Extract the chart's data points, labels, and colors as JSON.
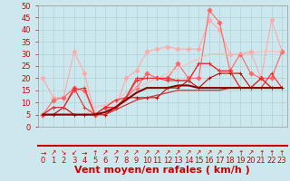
{
  "xlabel": "Vent moyen/en rafales ( km/h )",
  "xlim": [
    -0.5,
    23.5
  ],
  "ylim": [
    0,
    50
  ],
  "xticks": [
    0,
    1,
    2,
    3,
    4,
    5,
    6,
    7,
    8,
    9,
    10,
    11,
    12,
    13,
    14,
    15,
    16,
    17,
    18,
    19,
    20,
    21,
    22,
    23
  ],
  "yticks": [
    0,
    5,
    10,
    15,
    20,
    25,
    30,
    35,
    40,
    45,
    50
  ],
  "background_color": "#cce8ee",
  "grid_color": "#aacccc",
  "lines": [
    {
      "x": [
        0,
        1,
        2,
        3,
        4,
        5,
        6,
        7,
        8,
        9,
        10,
        11,
        12,
        13,
        14,
        15,
        16,
        17,
        18,
        19,
        20,
        21,
        22,
        23
      ],
      "y": [
        5,
        5,
        8,
        5,
        5,
        5,
        5,
        8,
        12,
        12,
        12,
        12,
        16,
        16,
        19,
        16,
        20,
        22,
        22,
        22,
        16,
        20,
        16,
        16
      ],
      "color": "#cc0000",
      "marker": "+",
      "markersize": 3,
      "linewidth": 0.8,
      "zorder": 3
    },
    {
      "x": [
        0,
        1,
        2,
        3,
        4,
        5,
        6,
        7,
        8,
        9,
        10,
        11,
        12,
        13,
        14,
        15,
        16,
        17,
        18,
        19,
        20,
        21,
        22,
        23
      ],
      "y": [
        5,
        8,
        8,
        15,
        16,
        5,
        8,
        11,
        12,
        19,
        20,
        20,
        20,
        19,
        19,
        26,
        26,
        23,
        23,
        16,
        16,
        16,
        22,
        16
      ],
      "color": "#ff2222",
      "marker": "+",
      "markersize": 3,
      "linewidth": 0.8,
      "zorder": 3
    },
    {
      "x": [
        0,
        1,
        2,
        3,
        4,
        5,
        6,
        7,
        8,
        9,
        10,
        11,
        12,
        13,
        14,
        15,
        16,
        17,
        18,
        19,
        20,
        21,
        22,
        23
      ],
      "y": [
        5,
        5,
        5,
        5,
        5,
        5,
        6,
        8,
        11,
        14,
        16,
        16,
        16,
        17,
        17,
        16,
        16,
        16,
        16,
        16,
        16,
        16,
        16,
        16
      ],
      "color": "#880000",
      "marker": null,
      "markersize": 0,
      "linewidth": 1.5,
      "zorder": 4
    },
    {
      "x": [
        0,
        1,
        2,
        3,
        4,
        5,
        6,
        7,
        8,
        9,
        10,
        11,
        12,
        13,
        14,
        15,
        16,
        17,
        18,
        19,
        20,
        21,
        22,
        23
      ],
      "y": [
        5,
        5,
        5,
        5,
        5,
        5,
        5,
        7,
        9,
        11,
        12,
        13,
        14,
        15,
        15,
        15,
        15,
        15,
        16,
        16,
        16,
        16,
        16,
        16
      ],
      "color": "#cc3333",
      "marker": null,
      "markersize": 0,
      "linewidth": 0.9,
      "zorder": 3
    },
    {
      "x": [
        0,
        1,
        2,
        3,
        4,
        5,
        6,
        7,
        8,
        9,
        10,
        11,
        12,
        13,
        14,
        15,
        16,
        17,
        18,
        19,
        20,
        21,
        22,
        23
      ],
      "y": [
        20,
        12,
        12,
        31,
        22,
        5,
        5,
        8,
        20,
        23,
        31,
        32,
        33,
        32,
        32,
        32,
        44,
        40,
        30,
        30,
        31,
        20,
        44,
        31
      ],
      "color": "#ffaaaa",
      "marker": "D",
      "markersize": 2.5,
      "linewidth": 0.8,
      "zorder": 2
    },
    {
      "x": [
        0,
        1,
        2,
        3,
        4,
        5,
        6,
        7,
        8,
        9,
        10,
        11,
        12,
        13,
        14,
        15,
        16,
        17,
        18,
        19,
        20,
        21,
        22,
        23
      ],
      "y": [
        5,
        11,
        12,
        16,
        15,
        5,
        8,
        8,
        12,
        16,
        22,
        20,
        20,
        26,
        20,
        20,
        48,
        43,
        23,
        30,
        22,
        20,
        20,
        31
      ],
      "color": "#ff6666",
      "marker": "D",
      "markersize": 2.5,
      "linewidth": 0.8,
      "zorder": 2
    },
    {
      "x": [
        0,
        1,
        2,
        3,
        4,
        5,
        6,
        7,
        8,
        9,
        10,
        11,
        12,
        13,
        14,
        15,
        16,
        17,
        18,
        19,
        20,
        21,
        22,
        23
      ],
      "y": [
        5,
        5,
        5,
        5,
        5,
        8,
        9,
        11,
        14,
        16,
        18,
        20,
        22,
        24,
        26,
        28,
        30,
        30,
        30,
        30,
        30,
        31,
        31,
        31
      ],
      "color": "#ffbbbb",
      "marker": null,
      "markersize": 0,
      "linewidth": 0.9,
      "zorder": 2
    },
    {
      "x": [
        0,
        1,
        2,
        3,
        4,
        5,
        6,
        7,
        8,
        9,
        10,
        11,
        12,
        13,
        14,
        15,
        16,
        17,
        18,
        19,
        20,
        21,
        22,
        23
      ],
      "y": [
        5,
        8,
        8,
        16,
        8,
        5,
        8,
        8,
        12,
        20,
        20,
        20,
        19,
        19,
        19,
        26,
        26,
        23,
        23,
        16,
        16,
        20,
        16,
        16
      ],
      "color": "#dd3333",
      "marker": "+",
      "markersize": 3,
      "linewidth": 0.8,
      "zorder": 3
    }
  ],
  "arrows": [
    "→",
    "↗",
    "↘",
    "↙",
    "→",
    "↑",
    "↗",
    "↗",
    "↗",
    "↗",
    "↗",
    "↗",
    "↗",
    "↗",
    "↗",
    "↗",
    "↗",
    "↗",
    "↗",
    "↑",
    "↗",
    "↑",
    "↑",
    "↑"
  ],
  "arrow_color": "#cc0000",
  "xlabel_color": "#cc0000",
  "xlabel_fontsize": 8,
  "tick_fontsize": 6,
  "tick_color": "#cc0000",
  "separator_color": "#cc0000",
  "separator_linewidth": 1.5
}
